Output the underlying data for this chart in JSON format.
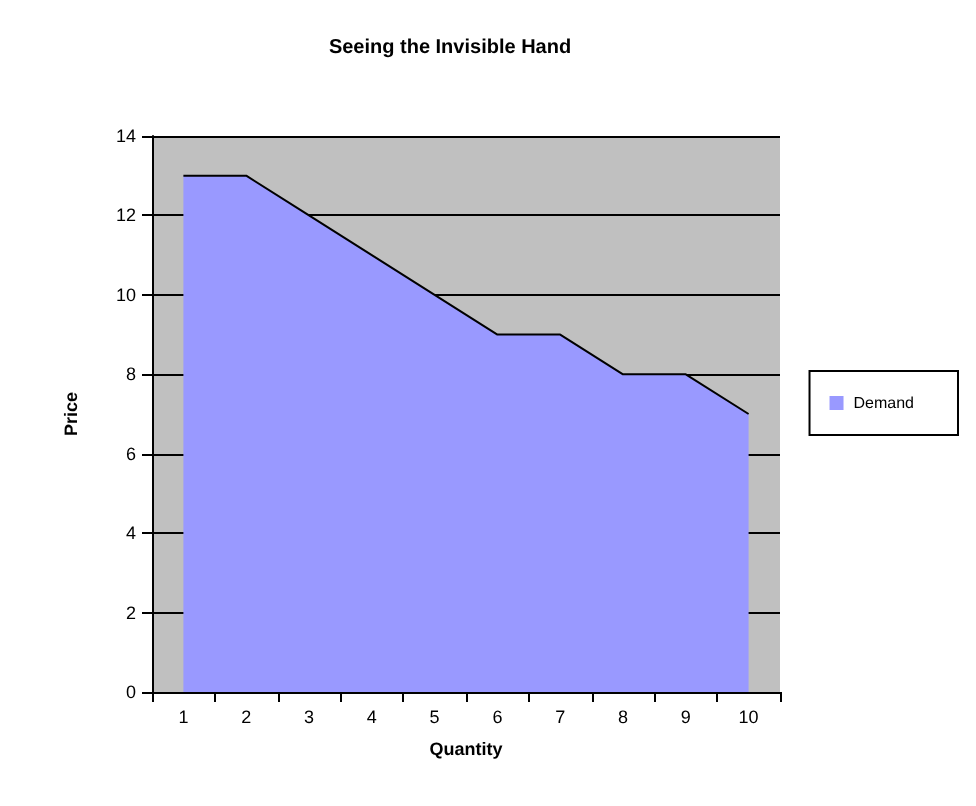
{
  "chart_data": {
    "type": "area",
    "title": "Seeing the Invisible Hand",
    "xlabel": "Quantity",
    "ylabel": "Price",
    "categories": [
      "1",
      "2",
      "3",
      "4",
      "5",
      "6",
      "7",
      "8",
      "9",
      "10"
    ],
    "series": [
      {
        "name": "Demand",
        "color": "#9999ff",
        "values": [
          13,
          13,
          12,
          11,
          10,
          9,
          9,
          8,
          8,
          7
        ]
      }
    ],
    "ylim": [
      0,
      14
    ],
    "yticks": [
      0,
      2,
      4,
      6,
      8,
      10,
      12,
      14
    ],
    "grid": "y",
    "legend": "right"
  }
}
